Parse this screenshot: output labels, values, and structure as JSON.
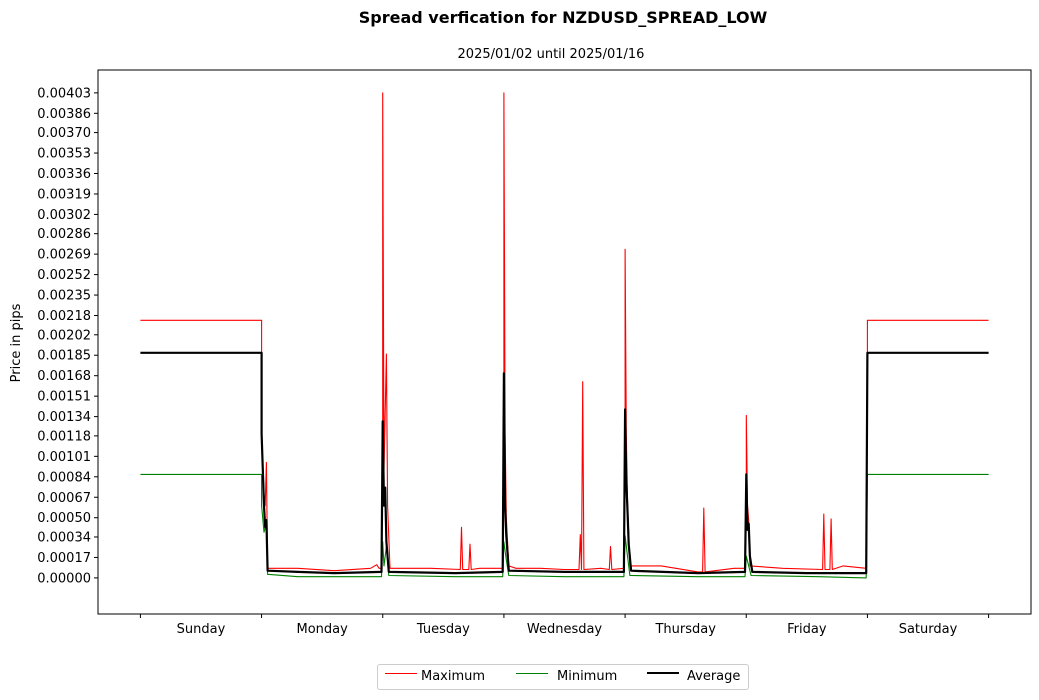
{
  "chart_data": {
    "type": "line",
    "title": "Spread verfication for NZDUSD_SPREAD_LOW",
    "subtitle": "2025/01/02 until 2025/01/16",
    "xlabel": "",
    "ylabel": "Price in pips",
    "ylim": [
      -0.0003,
      0.00422
    ],
    "yticks": [
      "0.00000",
      "0.00017",
      "0.00034",
      "0.00050",
      "0.00067",
      "0.00084",
      "0.00101",
      "0.00118",
      "0.00134",
      "0.00151",
      "0.00168",
      "0.00185",
      "0.00202",
      "0.00218",
      "0.00235",
      "0.00252",
      "0.00269",
      "0.00286",
      "0.00302",
      "0.00319",
      "0.00336",
      "0.00353",
      "0.00370",
      "0.00386",
      "0.00403"
    ],
    "categories": [
      "Sunday",
      "Monday",
      "Tuesday",
      "Wednesday",
      "Thursday",
      "Friday",
      "Saturday"
    ],
    "xlim": [
      -0.35,
      7.35
    ],
    "grid": false,
    "legend_position": "bottom-center",
    "series": [
      {
        "name": "Maximum",
        "color": "#ff0000",
        "points": [
          [
            0,
            0.00214
          ],
          [
            1.0,
            0.00214
          ],
          [
            1.0,
            0.0012
          ],
          [
            1.02,
            0.0007
          ],
          [
            1.03,
            0.0006
          ],
          [
            1.04,
            0.00096
          ],
          [
            1.05,
            8e-05
          ],
          [
            1.3,
            8e-05
          ],
          [
            1.6,
            6e-05
          ],
          [
            1.9,
            8e-05
          ],
          [
            1.95,
            0.00011
          ],
          [
            1.97,
            8e-05
          ],
          [
            1.99,
            8e-05
          ],
          [
            2.0,
            0.0013
          ],
          [
            2.0,
            0.00403
          ],
          [
            2.01,
            0.0009
          ],
          [
            2.03,
            0.00186
          ],
          [
            2.04,
            0.0006
          ],
          [
            2.06,
            8e-05
          ],
          [
            2.4,
            8e-05
          ],
          [
            2.64,
            7e-05
          ],
          [
            2.65,
            0.00042
          ],
          [
            2.66,
            7e-05
          ],
          [
            2.71,
            7e-05
          ],
          [
            2.72,
            0.00028
          ],
          [
            2.73,
            7e-05
          ],
          [
            2.8,
            8e-05
          ],
          [
            2.99,
            8e-05
          ],
          [
            3.0,
            0.0016
          ],
          [
            3.0,
            0.00403
          ],
          [
            3.01,
            0.0012
          ],
          [
            3.02,
            0.0005
          ],
          [
            3.04,
            0.0001
          ],
          [
            3.1,
            8e-05
          ],
          [
            3.3,
            8e-05
          ],
          [
            3.5,
            7e-05
          ],
          [
            3.62,
            7e-05
          ],
          [
            3.63,
            0.00036
          ],
          [
            3.64,
            7e-05
          ],
          [
            3.65,
            0.00163
          ],
          [
            3.66,
            7e-05
          ],
          [
            3.8,
            8e-05
          ],
          [
            3.87,
            7e-05
          ],
          [
            3.88,
            0.00026
          ],
          [
            3.89,
            7e-05
          ],
          [
            3.99,
            8e-05
          ],
          [
            4.0,
            0.0014
          ],
          [
            4.0,
            0.00273
          ],
          [
            4.01,
            0.0012
          ],
          [
            4.02,
            0.00064
          ],
          [
            4.04,
            0.0001
          ],
          [
            4.3,
            0.0001
          ],
          [
            4.6,
            5e-05
          ],
          [
            4.64,
            5e-05
          ],
          [
            4.65,
            0.00058
          ],
          [
            4.66,
            5e-05
          ],
          [
            4.9,
            8e-05
          ],
          [
            4.99,
            8e-05
          ],
          [
            5.0,
            0.0008
          ],
          [
            5.0,
            0.00135
          ],
          [
            5.01,
            0.0006
          ],
          [
            5.02,
            0.00048
          ],
          [
            5.03,
            0.0001
          ],
          [
            5.3,
            8e-05
          ],
          [
            5.63,
            7e-05
          ],
          [
            5.64,
            0.00053
          ],
          [
            5.65,
            7e-05
          ],
          [
            5.69,
            7e-05
          ],
          [
            5.7,
            0.00049
          ],
          [
            5.71,
            7e-05
          ],
          [
            5.8,
            0.0001
          ],
          [
            5.99,
            8e-05
          ],
          [
            6.0,
            0.0019
          ],
          [
            6.0,
            0.00214
          ],
          [
            7.0,
            0.00214
          ]
        ]
      },
      {
        "name": "Minimum",
        "color": "#008000",
        "points": [
          [
            0,
            0.00086
          ],
          [
            1.0,
            0.00086
          ],
          [
            1.0,
            0.0006
          ],
          [
            1.02,
            0.00038
          ],
          [
            1.04,
            0.00045
          ],
          [
            1.05,
            3e-05
          ],
          [
            1.3,
            1e-05
          ],
          [
            1.99,
            1e-05
          ],
          [
            2.0,
            0.0003
          ],
          [
            2.01,
            0.0001
          ],
          [
            2.03,
            0.00026
          ],
          [
            2.05,
            2e-05
          ],
          [
            2.6,
            1e-05
          ],
          [
            2.99,
            1e-05
          ],
          [
            3.0,
            0.0003
          ],
          [
            3.02,
            0.00015
          ],
          [
            3.04,
            2e-05
          ],
          [
            3.5,
            1e-05
          ],
          [
            3.99,
            1e-05
          ],
          [
            4.0,
            0.00035
          ],
          [
            4.02,
            0.00018
          ],
          [
            4.04,
            2e-05
          ],
          [
            4.6,
            1e-05
          ],
          [
            4.99,
            1e-05
          ],
          [
            5.0,
            0.00018
          ],
          [
            5.02,
            0.0001
          ],
          [
            5.04,
            2e-05
          ],
          [
            5.6,
            1e-05
          ],
          [
            5.99,
            0.0
          ],
          [
            6.0,
            0.00086
          ],
          [
            7.0,
            0.00086
          ]
        ]
      },
      {
        "name": "Average",
        "color": "#000000",
        "points": [
          [
            0,
            0.00187
          ],
          [
            1.0,
            0.00187
          ],
          [
            1.0,
            0.0012
          ],
          [
            1.02,
            0.0006
          ],
          [
            1.03,
            0.00042
          ],
          [
            1.04,
            0.00048
          ],
          [
            1.05,
            6e-05
          ],
          [
            1.3,
            5e-05
          ],
          [
            1.6,
            4e-05
          ],
          [
            1.99,
            5e-05
          ],
          [
            2.0,
            0.0013
          ],
          [
            2.01,
            0.0006
          ],
          [
            2.02,
            0.00075
          ],
          [
            2.03,
            0.0003
          ],
          [
            2.05,
            5e-05
          ],
          [
            2.6,
            4e-05
          ],
          [
            2.99,
            5e-05
          ],
          [
            3.0,
            0.0017
          ],
          [
            3.01,
            0.0006
          ],
          [
            3.02,
            0.00035
          ],
          [
            3.04,
            6e-05
          ],
          [
            3.5,
            5e-05
          ],
          [
            3.99,
            5e-05
          ],
          [
            4.0,
            0.0014
          ],
          [
            4.01,
            0.0008
          ],
          [
            4.02,
            0.00056
          ],
          [
            4.03,
            0.00028
          ],
          [
            4.05,
            6e-05
          ],
          [
            4.6,
            4e-05
          ],
          [
            4.99,
            5e-05
          ],
          [
            5.0,
            0.00086
          ],
          [
            5.01,
            0.0004
          ],
          [
            5.02,
            0.00045
          ],
          [
            5.03,
            0.00018
          ],
          [
            5.05,
            5e-05
          ],
          [
            5.5,
            4e-05
          ],
          [
            5.99,
            4e-05
          ],
          [
            6.0,
            0.00187
          ],
          [
            7.0,
            0.00187
          ]
        ]
      }
    ]
  }
}
